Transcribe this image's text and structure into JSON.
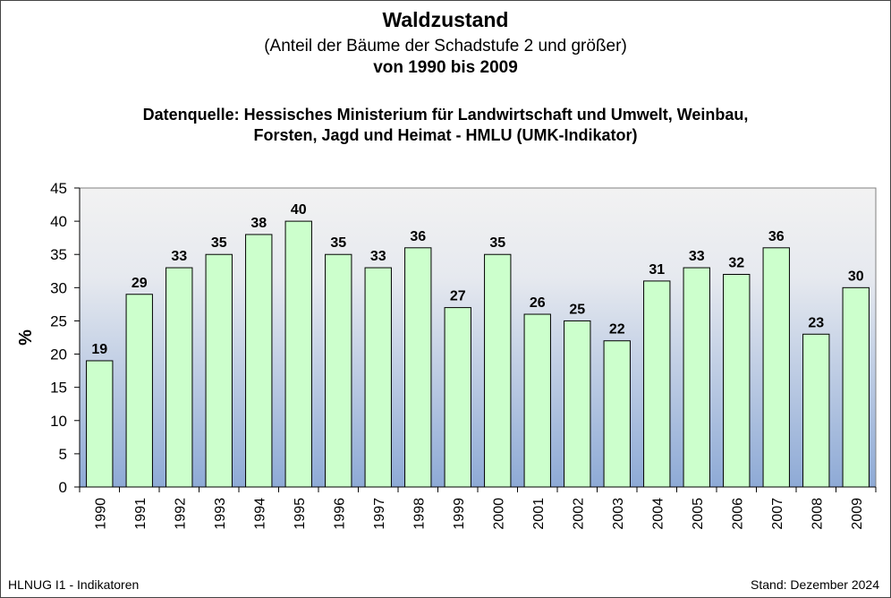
{
  "chart_data": {
    "type": "bar",
    "title": "Waldzustand",
    "subtitle": "(Anteil der Bäume der Schadstufe 2 und größer)",
    "period": "von 1990 bis 2009",
    "source_line1": "Datenquelle: Hessisches Ministerium für Landwirtschaft und Umwelt, Weinbau,",
    "source_line2": "Forsten, Jagd und Heimat - HMLU (UMK-Indikator)",
    "xlabel": "",
    "ylabel": "%",
    "ylim": [
      0,
      45
    ],
    "yticks": [
      "0",
      "5",
      "10",
      "15",
      "20",
      "25",
      "30",
      "35",
      "40",
      "45"
    ],
    "categories": [
      "1990",
      "1991",
      "1992",
      "1993",
      "1994",
      "1995",
      "1996",
      "1997",
      "1998",
      "1999",
      "2000",
      "2001",
      "2002",
      "2003",
      "2004",
      "2005",
      "2006",
      "2007",
      "2008",
      "2009"
    ],
    "values": [
      19,
      29,
      33,
      35,
      38,
      40,
      35,
      33,
      36,
      27,
      35,
      26,
      25,
      22,
      31,
      33,
      32,
      36,
      23,
      30
    ],
    "grid": false,
    "legend": "none",
    "colors": {
      "bar": "#ccffcc",
      "bar_border": "#000000",
      "plot_bg_top": "#f2f2f2",
      "plot_bg_bottom": "#8eaad6"
    }
  },
  "footer": {
    "left": "HLNUG I1 - Indikatoren",
    "right": "Stand: Dezember 2024"
  }
}
